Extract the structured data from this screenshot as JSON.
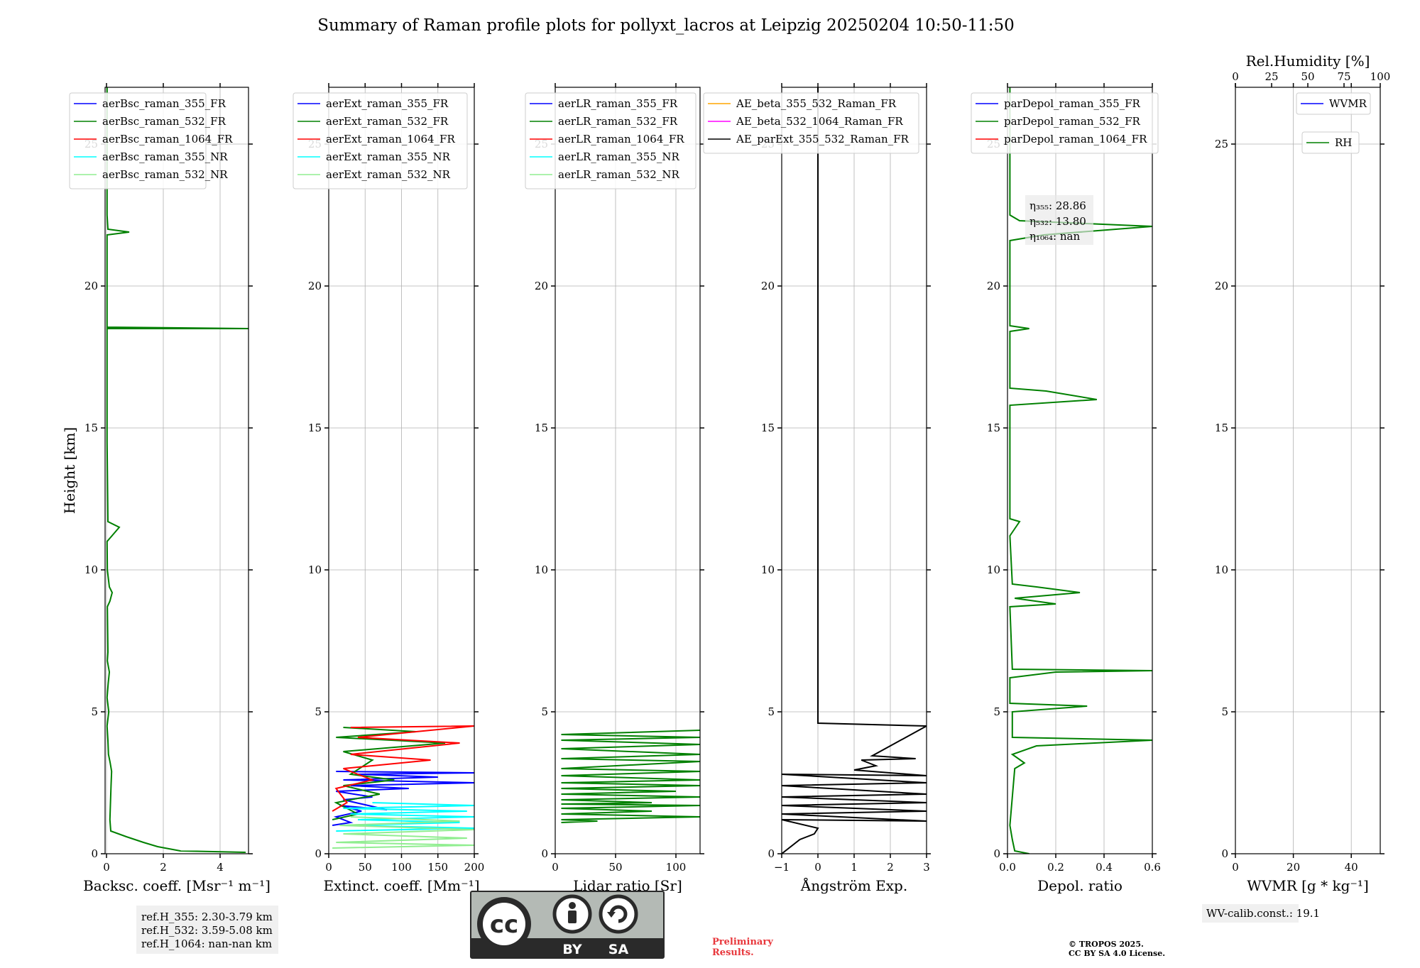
{
  "title": "Summary of Raman profile plots for pollyxt_lacros at Leipzig 20250204 10:50-11:50",
  "chart_data": [
    {
      "type": "line",
      "id": "backscatter",
      "xlabel": "Backsc. coeff. [Msr⁻¹ m⁻¹]",
      "ylabel": "Height [km]",
      "xlim": [
        -0.05,
        5.0
      ],
      "ylim": [
        0,
        27
      ],
      "xticks": [
        0,
        2,
        4
      ],
      "yticks": [
        0,
        5,
        10,
        15,
        20,
        25
      ],
      "grid": true,
      "legend": "top",
      "series": [
        {
          "name": "aerBsc_raman_355_FR",
          "color": "#0000ff",
          "points": []
        },
        {
          "name": "aerBsc_raman_532_FR",
          "color": "#008000",
          "points": [
            [
              4.9,
              0.05
            ],
            [
              2.6,
              0.1
            ],
            [
              1.8,
              0.25
            ],
            [
              1.3,
              0.4
            ],
            [
              0.7,
              0.6
            ],
            [
              0.15,
              0.8
            ],
            [
              0.12,
              1.2
            ],
            [
              0.14,
              1.8
            ],
            [
              0.16,
              2.4
            ],
            [
              0.18,
              2.9
            ],
            [
              0.13,
              3.2
            ],
            [
              0.07,
              3.5
            ],
            [
              0.05,
              4.0
            ],
            [
              0.02,
              4.5
            ],
            [
              0.08,
              5.0
            ],
            [
              0.02,
              5.5
            ],
            [
              0.06,
              6.0
            ],
            [
              0.1,
              6.4
            ],
            [
              0.03,
              6.8
            ],
            [
              0.05,
              7.1
            ],
            [
              0.03,
              8.7
            ],
            [
              0.12,
              8.9
            ],
            [
              0.2,
              9.2
            ],
            [
              0.1,
              9.4
            ],
            [
              0.03,
              10.0
            ],
            [
              0.02,
              11.0
            ],
            [
              0.45,
              11.5
            ],
            [
              0.05,
              11.7
            ],
            [
              0.02,
              14.5
            ],
            [
              0.02,
              16.0
            ],
            [
              0.02,
              18.5
            ],
            [
              5.0,
              18.5
            ],
            [
              0.02,
              18.55
            ],
            [
              0.02,
              21.8
            ],
            [
              0.8,
              21.9
            ],
            [
              0.05,
              22.0
            ],
            [
              0.02,
              22.5
            ],
            [
              0.02,
              27.0
            ]
          ]
        },
        {
          "name": "aerBsc_raman_1064_FR",
          "color": "#ff0000",
          "points": []
        },
        {
          "name": "aerBsc_raman_355_NR",
          "color": "#00ffff",
          "points": []
        },
        {
          "name": "aerBsc_raman_532_NR",
          "color": "#90ee90",
          "points": []
        }
      ],
      "annotation": [
        "ref.H_355: 2.30-3.79 km",
        "ref.H_532: 3.59-5.08 km",
        "ref.H_1064: nan-nan km"
      ]
    },
    {
      "type": "line",
      "id": "extinction",
      "xlabel": "Extinct. coeff. [Mm⁻¹]",
      "xlim": [
        0,
        200
      ],
      "ylim": [
        0,
        27
      ],
      "xticks": [
        0,
        50,
        100,
        150,
        200
      ],
      "yticks": [
        0,
        5,
        10,
        15,
        20,
        25
      ],
      "grid": true,
      "legend": "top",
      "series": [
        {
          "name": "aerExt_raman_355_FR",
          "color": "#0000ff",
          "points": [
            [
              5,
              1.0
            ],
            [
              30,
              1.1
            ],
            [
              10,
              1.3
            ],
            [
              45,
              1.5
            ],
            [
              15,
              1.7
            ],
            [
              80,
              1.55
            ],
            [
              20,
              1.9
            ],
            [
              60,
              2.0
            ],
            [
              10,
              2.2
            ],
            [
              110,
              2.3
            ],
            [
              30,
              2.4
            ],
            [
              200,
              2.5
            ],
            [
              20,
              2.6
            ],
            [
              150,
              2.7
            ],
            [
              40,
              2.8
            ],
            [
              200,
              2.85
            ],
            [
              10,
              2.9
            ]
          ]
        },
        {
          "name": "aerExt_raman_532_FR",
          "color": "#008000",
          "points": [
            [
              5,
              1.2
            ],
            [
              40,
              1.4
            ],
            [
              10,
              1.8
            ],
            [
              70,
              2.1
            ],
            [
              20,
              2.4
            ],
            [
              90,
              2.6
            ],
            [
              30,
              2.8
            ],
            [
              60,
              3.3
            ],
            [
              20,
              3.6
            ],
            [
              160,
              3.9
            ],
            [
              10,
              4.1
            ],
            [
              120,
              4.3
            ],
            [
              20,
              4.45
            ]
          ]
        },
        {
          "name": "aerExt_raman_1064_FR",
          "color": "#ff0000",
          "points": [
            [
              5,
              1.5
            ],
            [
              25,
              1.8
            ],
            [
              10,
              2.3
            ],
            [
              60,
              2.6
            ],
            [
              20,
              3.0
            ],
            [
              140,
              3.3
            ],
            [
              30,
              3.5
            ],
            [
              180,
              3.9
            ],
            [
              40,
              4.1
            ],
            [
              200,
              4.5
            ],
            [
              30,
              4.45
            ]
          ]
        },
        {
          "name": "aerExt_raman_355_NR",
          "color": "#00ffff",
          "points": [
            [
              10,
              0.8
            ],
            [
              200,
              0.9
            ],
            [
              20,
              1.0
            ],
            [
              180,
              1.1
            ],
            [
              40,
              1.2
            ],
            [
              200,
              1.3
            ],
            [
              30,
              1.4
            ],
            [
              190,
              1.5
            ],
            [
              20,
              1.6
            ],
            [
              200,
              1.7
            ],
            [
              60,
              1.8
            ]
          ]
        },
        {
          "name": "aerExt_raman_532_NR",
          "color": "#90ee90",
          "points": [
            [
              5,
              0.2
            ],
            [
              200,
              0.3
            ],
            [
              10,
              0.4
            ],
            [
              190,
              0.55
            ],
            [
              20,
              0.7
            ],
            [
              200,
              0.85
            ],
            [
              15,
              1.0
            ],
            [
              180,
              1.15
            ],
            [
              30,
              1.3
            ]
          ]
        }
      ]
    },
    {
      "type": "line",
      "id": "lidar_ratio",
      "xlabel": "Lidar ratio [Sr]",
      "xlim": [
        0,
        120
      ],
      "ylim": [
        0,
        27
      ],
      "xticks": [
        0,
        50,
        100
      ],
      "yticks": [
        0,
        5,
        10,
        15,
        20,
        25
      ],
      "grid": true,
      "legend": "top",
      "series": [
        {
          "name": "aerLR_raman_355_FR",
          "color": "#0000ff",
          "points": []
        },
        {
          "name": "aerLR_raman_532_FR",
          "color": "#008000",
          "points": [
            [
              5,
              1.1
            ],
            [
              35,
              1.15
            ],
            [
              5,
              1.2
            ],
            [
              120,
              1.3
            ],
            [
              5,
              1.4
            ],
            [
              80,
              1.5
            ],
            [
              5,
              1.6
            ],
            [
              120,
              1.7
            ],
            [
              5,
              1.75
            ],
            [
              80,
              1.8
            ],
            [
              5,
              1.9
            ],
            [
              120,
              2.0
            ],
            [
              5,
              2.1
            ],
            [
              100,
              2.2
            ],
            [
              5,
              2.3
            ],
            [
              120,
              2.4
            ],
            [
              5,
              2.5
            ],
            [
              120,
              2.6
            ],
            [
              5,
              2.75
            ],
            [
              120,
              2.9
            ],
            [
              5,
              3.0
            ],
            [
              120,
              3.25
            ],
            [
              5,
              3.35
            ],
            [
              120,
              3.5
            ],
            [
              5,
              3.7
            ],
            [
              120,
              3.85
            ],
            [
              5,
              4.0
            ],
            [
              120,
              4.1
            ],
            [
              5,
              4.2
            ],
            [
              120,
              4.35
            ]
          ]
        },
        {
          "name": "aerLR_raman_1064_FR",
          "color": "#ff0000",
          "points": []
        },
        {
          "name": "aerLR_raman_355_NR",
          "color": "#00ffff",
          "points": []
        },
        {
          "name": "aerLR_raman_532_NR",
          "color": "#90ee90",
          "points": []
        }
      ]
    },
    {
      "type": "line",
      "id": "angstrom",
      "xlabel": "Ångström Exp.",
      "xlim": [
        -1,
        3
      ],
      "ylim": [
        0,
        27
      ],
      "xticks": [
        -1,
        0,
        1,
        2,
        3
      ],
      "yticks": [
        0,
        5,
        10,
        15,
        20,
        25
      ],
      "grid": true,
      "legend": "top",
      "series": [
        {
          "name": "AE_beta_355_532_Raman_FR",
          "color": "#ffa500",
          "points": []
        },
        {
          "name": "AE_beta_532_1064_Raman_FR",
          "color": "#ff00ff",
          "points": []
        },
        {
          "name": "AE_parExt_355_532_Raman_FR",
          "color": "#000000",
          "points": [
            [
              -1.0,
              0.0
            ],
            [
              -0.5,
              0.5
            ],
            [
              -0.3,
              0.6
            ],
            [
              -0.1,
              0.7
            ],
            [
              0.0,
              0.9
            ],
            [
              -1.0,
              1.2
            ],
            [
              3.0,
              1.15
            ],
            [
              -1.0,
              1.4
            ],
            [
              3.0,
              1.5
            ],
            [
              -1.0,
              1.7
            ],
            [
              3.0,
              1.8
            ],
            [
              -1.0,
              2.0
            ],
            [
              3.0,
              2.1
            ],
            [
              -1.0,
              2.4
            ],
            [
              3.0,
              2.5
            ],
            [
              -1.0,
              2.8
            ],
            [
              3.0,
              2.75
            ],
            [
              1.0,
              2.95
            ],
            [
              1.6,
              3.1
            ],
            [
              1.2,
              3.3
            ],
            [
              2.7,
              3.35
            ],
            [
              1.5,
              3.45
            ],
            [
              3.0,
              4.5
            ],
            [
              0.0,
              4.6
            ],
            [
              0.0,
              27.0
            ]
          ]
        }
      ]
    },
    {
      "type": "line",
      "id": "depol",
      "xlabel": "Depol. ratio",
      "xlim": [
        0,
        0.6
      ],
      "ylim": [
        0,
        27
      ],
      "xticks": [
        0.0,
        0.2,
        0.4,
        0.6
      ],
      "yticks": [
        0,
        5,
        10,
        15,
        20,
        25
      ],
      "grid": true,
      "legend": "top",
      "series": [
        {
          "name": "parDepol_raman_355_FR",
          "color": "#0000ff",
          "points": []
        },
        {
          "name": "parDepol_raman_532_FR",
          "color": "#008000",
          "points": [
            [
              0.09,
              0.0
            ],
            [
              0.03,
              0.1
            ],
            [
              0.02,
              0.5
            ],
            [
              0.01,
              1.0
            ],
            [
              0.02,
              2.0
            ],
            [
              0.03,
              3.0
            ],
            [
              0.07,
              3.2
            ],
            [
              0.02,
              3.5
            ],
            [
              0.12,
              3.8
            ],
            [
              0.6,
              4.0
            ],
            [
              0.02,
              4.1
            ],
            [
              0.02,
              5.0
            ],
            [
              0.33,
              5.2
            ],
            [
              0.01,
              5.3
            ],
            [
              0.01,
              6.2
            ],
            [
              0.2,
              6.4
            ],
            [
              0.6,
              6.45
            ],
            [
              0.02,
              6.5
            ],
            [
              0.01,
              8.7
            ],
            [
              0.2,
              8.8
            ],
            [
              0.03,
              9.0
            ],
            [
              0.3,
              9.2
            ],
            [
              0.12,
              9.4
            ],
            [
              0.02,
              9.5
            ],
            [
              0.01,
              11.2
            ],
            [
              0.05,
              11.7
            ],
            [
              0.01,
              11.8
            ],
            [
              0.01,
              15.8
            ],
            [
              0.37,
              16.0
            ],
            [
              0.16,
              16.3
            ],
            [
              0.01,
              16.4
            ],
            [
              0.01,
              18.4
            ],
            [
              0.09,
              18.5
            ],
            [
              0.01,
              18.6
            ],
            [
              0.01,
              21.6
            ],
            [
              0.15,
              21.8
            ],
            [
              0.6,
              22.1
            ],
            [
              0.05,
              22.3
            ],
            [
              0.01,
              22.5
            ],
            [
              0.01,
              27.0
            ]
          ]
        },
        {
          "name": "parDepol_raman_1064_FR",
          "color": "#ff0000",
          "points": []
        }
      ],
      "eta_lines": [
        "η₃₅₅: 28.86",
        "η₅₃₂: 13.80",
        "η₁₀₆₄: nan"
      ]
    },
    {
      "type": "line",
      "id": "wvmr",
      "xlabel": "WVMR [g * kg⁻¹]",
      "top_xlabel": "Rel.Humidity [%]",
      "xlim": [
        0,
        50
      ],
      "top_xlim": [
        0,
        100
      ],
      "ylim": [
        0,
        27
      ],
      "xticks": [
        0,
        20,
        40
      ],
      "top_xticks": [
        0,
        25,
        50,
        75,
        100
      ],
      "yticks": [
        0,
        5,
        10,
        15,
        20,
        25
      ],
      "grid": true,
      "legend": "top-right",
      "series": [
        {
          "name": "WVMR",
          "color": "#0000ff",
          "points": []
        },
        {
          "name": "RH",
          "color": "#008000",
          "points": []
        }
      ],
      "annotation": [
        "WV-calib.const.: 19.1"
      ]
    }
  ],
  "footer": {
    "license_badge": {
      "cc": "cc",
      "by": "BY",
      "sa": "SA"
    },
    "preliminary": [
      "Preliminary",
      "Results."
    ],
    "copyright": [
      "© TROPOS 2025.",
      "CC BY SA 4.0 License."
    ]
  },
  "colors": {
    "accent_red": "#e8373c",
    "badge_gray": "#b4bab5",
    "badge_dark": "#2a2a2a"
  }
}
